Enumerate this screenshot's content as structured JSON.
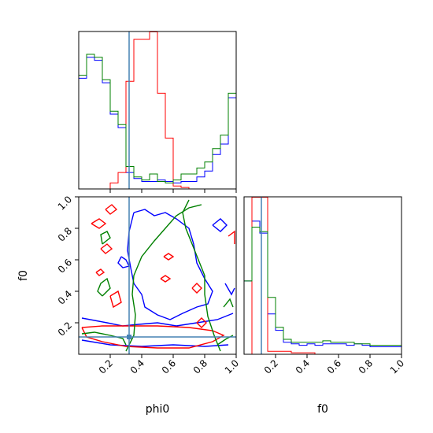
{
  "chart_data": {
    "type": "corner",
    "colors": {
      "run1": "#0000ff",
      "run2": "#ff0000",
      "run3": "#008000",
      "truth": "#4682b4"
    },
    "axes": {
      "phi0": {
        "label": "phi0",
        "range": [
          0.0,
          1.0
        ],
        "ticks": [
          "0.2",
          "0.4",
          "0.6",
          "0.8",
          "1.0"
        ],
        "truth": 0.32
      },
      "f0": {
        "label": "f0",
        "range": [
          0.0,
          1.0
        ],
        "ticks": [
          "0.2",
          "0.4",
          "0.6",
          "0.8",
          "1.0"
        ],
        "truth": 0.11
      }
    },
    "hist_phi0": {
      "bins": 20,
      "x_range": [
        0.0,
        1.0
      ],
      "y_max": 1.0,
      "series": [
        {
          "color": "blue",
          "values": [
            0.74,
            0.88,
            0.86,
            0.71,
            0.5,
            0.41,
            0.11,
            0.07,
            0.05,
            0.05,
            0.06,
            0.05,
            0.04,
            0.05,
            0.05,
            0.08,
            0.12,
            0.23,
            0.3,
            0.61
          ]
        },
        {
          "color": "red",
          "values": [
            0.0,
            0.0,
            0.0,
            0.0,
            0.04,
            0.11,
            0.72,
            1.0,
            1.0,
            1.2,
            0.64,
            0.34,
            0.02,
            0.01,
            0.0,
            0.0,
            0.0,
            0.0,
            0.0,
            0.0
          ]
        },
        {
          "color": "green",
          "values": [
            0.76,
            0.9,
            0.88,
            0.73,
            0.52,
            0.43,
            0.15,
            0.08,
            0.06,
            0.1,
            0.05,
            0.04,
            0.06,
            0.1,
            0.1,
            0.14,
            0.18,
            0.27,
            0.36,
            0.64
          ]
        }
      ]
    },
    "hist_f0": {
      "bins": 20,
      "x_range": [
        0.0,
        1.0
      ],
      "y_max": 1.0,
      "series": [
        {
          "color": "blue",
          "values": [
            0.49,
            0.89,
            0.81,
            0.27,
            0.16,
            0.08,
            0.07,
            0.06,
            0.07,
            0.06,
            0.07,
            0.07,
            0.07,
            0.06,
            0.07,
            0.06,
            0.05,
            0.05,
            0.05,
            0.05
          ]
        },
        {
          "color": "red",
          "values": [
            0.0,
            1.2,
            1.3,
            0.02,
            0.02,
            0.02,
            0.01,
            0.01,
            0.01,
            0.0,
            0.0,
            0.0,
            0.0,
            0.0,
            0.0,
            0.0,
            0.0,
            0.0,
            0.0,
            0.0
          ]
        },
        {
          "color": "green",
          "values": [
            0.49,
            0.85,
            0.82,
            0.38,
            0.18,
            0.1,
            0.08,
            0.08,
            0.08,
            0.08,
            0.09,
            0.08,
            0.08,
            0.08,
            0.07,
            0.07,
            0.06,
            0.06,
            0.06,
            0.06
          ]
        }
      ]
    },
    "contours": [
      {
        "color": "blue",
        "paths": [
          [
            [
              0.35,
              0.9
            ],
            [
              0.42,
              0.92
            ],
            [
              0.48,
              0.88
            ],
            [
              0.55,
              0.9
            ],
            [
              0.62,
              0.86
            ],
            [
              0.7,
              0.8
            ],
            [
              0.73,
              0.7
            ],
            [
              0.75,
              0.58
            ],
            [
              0.8,
              0.48
            ],
            [
              0.85,
              0.4
            ],
            [
              0.82,
              0.32
            ],
            [
              0.75,
              0.3
            ],
            [
              0.66,
              0.26
            ],
            [
              0.58,
              0.22
            ],
            [
              0.5,
              0.25
            ],
            [
              0.42,
              0.3
            ],
            [
              0.4,
              0.38
            ],
            [
              0.35,
              0.45
            ],
            [
              0.33,
              0.55
            ],
            [
              0.31,
              0.66
            ],
            [
              0.32,
              0.78
            ],
            [
              0.35,
              0.9
            ]
          ],
          [
            [
              0.27,
              0.62
            ],
            [
              0.3,
              0.6
            ],
            [
              0.32,
              0.56
            ],
            [
              0.28,
              0.55
            ],
            [
              0.25,
              0.58
            ],
            [
              0.27,
              0.62
            ]
          ],
          [
            [
              0.02,
              0.09
            ],
            [
              0.2,
              0.06
            ],
            [
              0.4,
              0.05
            ],
            [
              0.6,
              0.06
            ],
            [
              0.8,
              0.05
            ],
            [
              0.95,
              0.06
            ]
          ],
          [
            [
              0.02,
              0.23
            ],
            [
              0.18,
              0.2
            ],
            [
              0.28,
              0.18
            ],
            [
              0.38,
              0.19
            ],
            [
              0.5,
              0.2
            ],
            [
              0.62,
              0.18
            ],
            [
              0.75,
              0.2
            ],
            [
              0.88,
              0.22
            ],
            [
              0.98,
              0.26
            ]
          ],
          [
            [
              0.85,
              0.82
            ],
            [
              0.9,
              0.86
            ],
            [
              0.94,
              0.82
            ],
            [
              0.9,
              0.78
            ],
            [
              0.85,
              0.82
            ]
          ],
          [
            [
              0.93,
              0.45
            ],
            [
              0.97,
              0.38
            ],
            [
              0.99,
              0.42
            ]
          ]
        ]
      },
      {
        "color": "red",
        "paths": [
          [
            [
              0.02,
              0.17
            ],
            [
              0.15,
              0.18
            ],
            [
              0.3,
              0.18
            ],
            [
              0.5,
              0.18
            ],
            [
              0.7,
              0.17
            ],
            [
              0.85,
              0.15
            ],
            [
              0.92,
              0.12
            ],
            [
              0.85,
              0.08
            ],
            [
              0.7,
              0.04
            ],
            [
              0.5,
              0.04
            ],
            [
              0.3,
              0.05
            ],
            [
              0.15,
              0.08
            ],
            [
              0.05,
              0.11
            ],
            [
              0.02,
              0.17
            ]
          ],
          [
            [
              0.08,
              0.83
            ],
            [
              0.13,
              0.86
            ],
            [
              0.17,
              0.83
            ],
            [
              0.13,
              0.8
            ],
            [
              0.08,
              0.83
            ]
          ],
          [
            [
              0.17,
              0.92
            ],
            [
              0.21,
              0.95
            ],
            [
              0.24,
              0.92
            ],
            [
              0.2,
              0.89
            ],
            [
              0.17,
              0.92
            ]
          ],
          [
            [
              0.14,
              0.67
            ],
            [
              0.18,
              0.7
            ],
            [
              0.21,
              0.67
            ],
            [
              0.17,
              0.64
            ],
            [
              0.14,
              0.67
            ]
          ],
          [
            [
              0.11,
              0.52
            ],
            [
              0.14,
              0.54
            ],
            [
              0.16,
              0.52
            ],
            [
              0.13,
              0.5
            ],
            [
              0.11,
              0.52
            ]
          ],
          [
            [
              0.52,
              0.48
            ],
            [
              0.55,
              0.5
            ],
            [
              0.58,
              0.48
            ],
            [
              0.55,
              0.46
            ],
            [
              0.52,
              0.48
            ]
          ],
          [
            [
              0.54,
              0.62
            ],
            [
              0.57,
              0.64
            ],
            [
              0.6,
              0.62
            ],
            [
              0.57,
              0.6
            ],
            [
              0.54,
              0.62
            ]
          ],
          [
            [
              0.72,
              0.42
            ],
            [
              0.75,
              0.45
            ],
            [
              0.78,
              0.42
            ],
            [
              0.75,
              0.39
            ],
            [
              0.72,
              0.42
            ]
          ],
          [
            [
              0.2,
              0.37
            ],
            [
              0.25,
              0.4
            ],
            [
              0.27,
              0.33
            ],
            [
              0.22,
              0.3
            ],
            [
              0.2,
              0.37
            ]
          ],
          [
            [
              0.75,
              0.2
            ],
            [
              0.78,
              0.23
            ],
            [
              0.81,
              0.2
            ],
            [
              0.78,
              0.17
            ],
            [
              0.75,
              0.2
            ]
          ],
          [
            [
              0.95,
              0.75
            ],
            [
              0.99,
              0.78
            ],
            [
              0.99,
              0.7
            ]
          ]
        ]
      },
      {
        "color": "green",
        "paths": [
          [
            [
              0.3,
              0.02
            ],
            [
              0.35,
              0.12
            ],
            [
              0.36,
              0.25
            ],
            [
              0.34,
              0.38
            ],
            [
              0.35,
              0.5
            ],
            [
              0.4,
              0.62
            ],
            [
              0.48,
              0.72
            ],
            [
              0.55,
              0.8
            ],
            [
              0.62,
              0.88
            ],
            [
              0.7,
              0.93
            ],
            [
              0.78,
              0.95
            ]
          ],
          [
            [
              0.9,
              0.02
            ],
            [
              0.86,
              0.12
            ],
            [
              0.82,
              0.24
            ],
            [
              0.8,
              0.38
            ],
            [
              0.8,
              0.5
            ],
            [
              0.76,
              0.6
            ],
            [
              0.72,
              0.7
            ],
            [
              0.68,
              0.8
            ],
            [
              0.66,
              0.9
            ],
            [
              0.7,
              0.98
            ]
          ],
          [
            [
              0.02,
              0.13
            ],
            [
              0.1,
              0.14
            ],
            [
              0.2,
              0.12
            ],
            [
              0.28,
              0.1
            ],
            [
              0.3,
              0.06
            ]
          ],
          [
            [
              0.88,
              0.06
            ],
            [
              0.94,
              0.1
            ],
            [
              0.98,
              0.12
            ]
          ],
          [
            [
              0.15,
              0.37
            ],
            [
              0.2,
              0.42
            ],
            [
              0.18,
              0.48
            ],
            [
              0.14,
              0.45
            ],
            [
              0.12,
              0.4
            ],
            [
              0.15,
              0.37
            ]
          ],
          [
            [
              0.15,
              0.7
            ],
            [
              0.2,
              0.74
            ],
            [
              0.18,
              0.78
            ],
            [
              0.14,
              0.76
            ],
            [
              0.15,
              0.7
            ]
          ],
          [
            [
              0.92,
              0.3
            ],
            [
              0.96,
              0.35
            ],
            [
              0.98,
              0.3
            ]
          ]
        ]
      }
    ],
    "truth_marker": {
      "x": 0.32,
      "y": 0.11
    }
  }
}
